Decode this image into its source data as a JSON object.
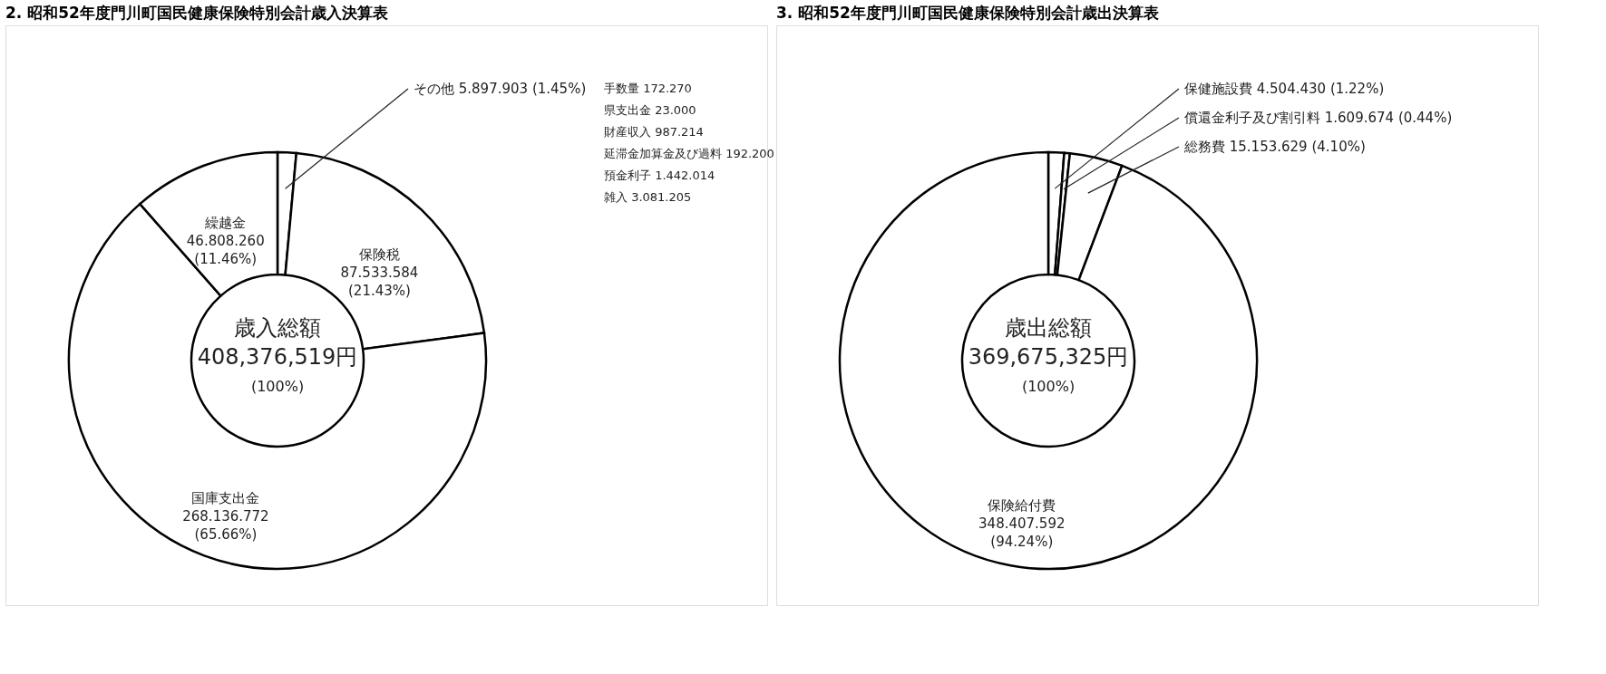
{
  "chart_data": [
    {
      "type": "donut",
      "title": "2. 昭和52年度門川町国民健康保険特別会計歳入決算表",
      "categories": [
        "その他",
        "保険税",
        "国庫支出金",
        "繰越金"
      ],
      "values": [
        5897903,
        87533584,
        268136772,
        46808260
      ],
      "value_labels": [
        "5.897.903 (1.45%)",
        "87.533.584 (21.43%)",
        "268.136.772 (65.66%)",
        "46.808.260 (11.46%)"
      ],
      "colors": [
        "#ffffff",
        "#ffffff",
        "#ffffff",
        "#ffffff"
      ],
      "annotations": [
        "歳入総額",
        "408,376,519円",
        "(100%)",
        "手数量 172.270",
        "県支出金 23.000",
        "財産収入 987.214",
        "延滞金加算金及び過料 192.200",
        "預金利子 1.442.014",
        "雑入 3.081.205"
      ]
    },
    {
      "type": "donut",
      "title": "3. 昭和52年度門川町国民健康保険特別会計歳出決算表",
      "categories": [
        "保健施設費",
        "償還金利子及び割引料",
        "総務費",
        "保険給付費"
      ],
      "values": [
        4504430,
        1609674,
        15153629,
        348407592
      ],
      "value_labels": [
        "4.504.430 (1.22%)",
        "1.609.674 (0.44%)",
        "15.153.629 (4.10%)",
        "348.407.592 (94.24%)"
      ],
      "colors": [
        "#ffffff",
        "#ffffff",
        "#ffffff",
        "#ffffff"
      ],
      "annotations": [
        "歳出総額",
        "369,675,325円",
        "(100%)"
      ]
    }
  ]
}
